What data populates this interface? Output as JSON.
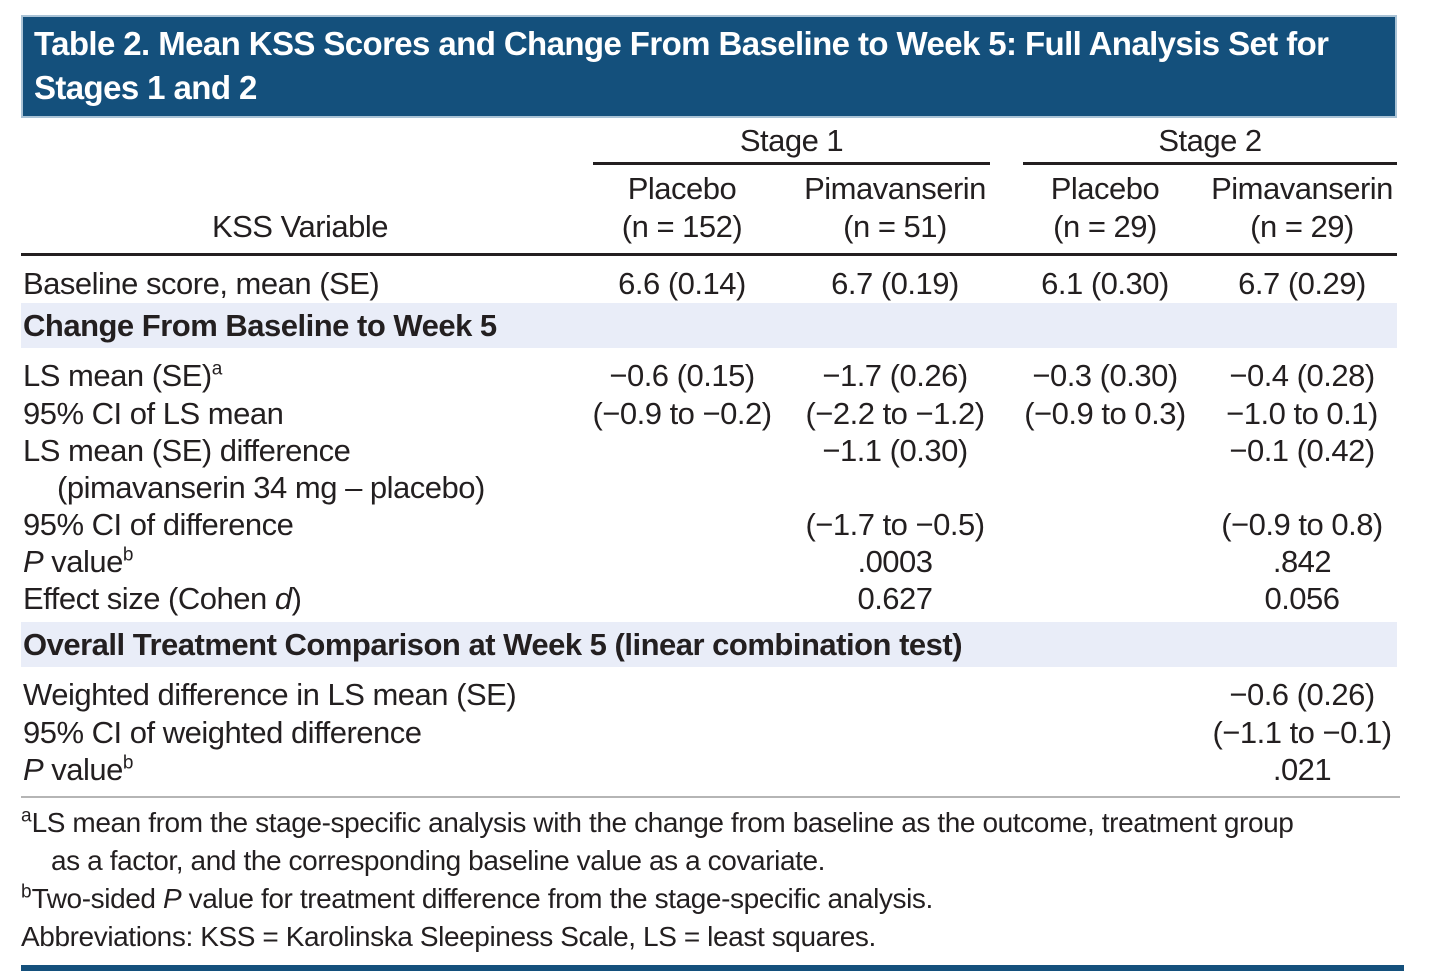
{
  "title": {
    "lines": [
      "Table 2. Mean KSS Scores and Change From Baseline to Week 5: Full Analysis Set for",
      "Stages 1 and 2"
    ]
  },
  "colors": {
    "banner_navy": "#14507c",
    "section_band_blue": "#e9edf8",
    "text": "#231f20",
    "rule_black": "#231f20",
    "rule_gray": "#b5b5b5"
  },
  "header": {
    "stub": "KSS Variable",
    "groups": [
      {
        "label": "Stage 1"
      },
      {
        "label": "Stage 2"
      }
    ],
    "columns": [
      {
        "drug": "Placebo",
        "n": "(n = 152)"
      },
      {
        "drug": "Pimavanserin",
        "n": "(n = 51)"
      },
      {
        "drug": "Placebo",
        "n": "(n = 29)"
      },
      {
        "drug": "Pimavanserin",
        "n": "(n = 29)"
      }
    ]
  },
  "rows": [
    {
      "type": "data",
      "pad": "top",
      "label": [
        {
          "t": "Baseline score, mean (SE)"
        }
      ],
      "cells": [
        "6.6 (0.14)",
        "6.7 (0.19)",
        "6.1 (0.30)",
        "6.7 (0.29)"
      ]
    },
    {
      "type": "section",
      "label": [
        {
          "t": "Change From Baseline to Week 5"
        }
      ]
    },
    {
      "type": "data",
      "pad": "top",
      "label": [
        {
          "t": "LS mean (SE)"
        },
        {
          "t": "a",
          "s": "sup"
        }
      ],
      "cells": [
        "−0.6 (0.15)",
        "−1.7 (0.26)",
        "−0.3 (0.30)",
        "−0.4 (0.28)"
      ]
    },
    {
      "type": "data",
      "label": [
        {
          "t": "95% CI of LS mean"
        }
      ],
      "cells": [
        "(−0.9 to −0.2)",
        "(−2.2 to −1.2)",
        "(−0.9 to 0.3)",
        "−1.0 to 0.1)"
      ]
    },
    {
      "type": "data",
      "label": [
        {
          "t": "LS mean (SE) difference"
        }
      ],
      "cells": [
        "",
        "−1.1 (0.30)",
        "",
        "−0.1 (0.42)"
      ]
    },
    {
      "type": "data",
      "indent": true,
      "label": [
        {
          "t": "(pimavanserin 34 mg – placebo)"
        }
      ],
      "cells": [
        "",
        "",
        "",
        ""
      ]
    },
    {
      "type": "data",
      "label": [
        {
          "t": "95% CI of difference"
        }
      ],
      "cells": [
        "",
        "(−1.7 to −0.5)",
        "",
        "(−0.9 to 0.8)"
      ]
    },
    {
      "type": "data",
      "label": [
        {
          "t": "P",
          "s": "i"
        },
        {
          "t": " value"
        },
        {
          "t": "b",
          "s": "sup"
        }
      ],
      "cells": [
        "",
        ".0003",
        "",
        ".842"
      ]
    },
    {
      "type": "data",
      "pad": "bot",
      "label": [
        {
          "t": "Effect size (Cohen "
        },
        {
          "t": "d",
          "s": "i"
        },
        {
          "t": ")"
        }
      ],
      "cells": [
        "",
        "0.627",
        "",
        "0.056"
      ]
    },
    {
      "type": "section",
      "label": [
        {
          "t": "Overall Treatment Comparison at Week 5 (linear combination test)"
        }
      ]
    },
    {
      "type": "data",
      "pad": "top",
      "label": [
        {
          "t": "Weighted difference in LS mean (SE)"
        }
      ],
      "cells": [
        "",
        "",
        "",
        "−0.6 (0.26)"
      ]
    },
    {
      "type": "data",
      "label": [
        {
          "t": "95% CI of weighted difference"
        }
      ],
      "cells": [
        "",
        "",
        "",
        "(−1.1 to −0.1)"
      ]
    },
    {
      "type": "data",
      "pad": "bot",
      "label": [
        {
          "t": "P",
          "s": "i"
        },
        {
          "t": " value"
        },
        {
          "t": "b",
          "s": "sup"
        }
      ],
      "cells": [
        "",
        "",
        "",
        ".021"
      ]
    }
  ],
  "footnotes": [
    {
      "hang": false,
      "segments": [
        {
          "t": "a",
          "s": "sup"
        },
        {
          "t": "LS mean from the stage-specific analysis with the change from baseline as the outcome, treatment group"
        }
      ]
    },
    {
      "hang": true,
      "segments": [
        {
          "t": "as a factor, and the corresponding baseline value as a covariate."
        }
      ]
    },
    {
      "hang": false,
      "segments": [
        {
          "t": "b",
          "s": "sup"
        },
        {
          "t": "Two-sided "
        },
        {
          "t": "P",
          "s": "i"
        },
        {
          "t": " value for treatment difference from the stage-specific analysis."
        }
      ]
    },
    {
      "hang": false,
      "segments": [
        {
          "t": "Abbreviations: KSS = Karolinska Sleepiness Scale, LS = least squares."
        }
      ]
    }
  ]
}
